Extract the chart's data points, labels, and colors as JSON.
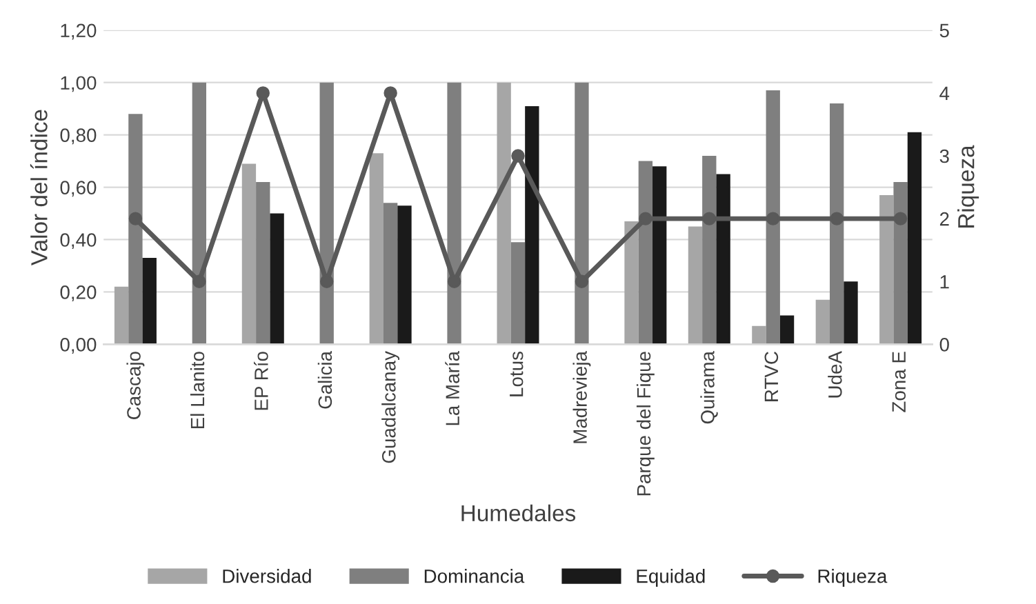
{
  "chart_data": {
    "type": "bar",
    "xlabel": "Humedales",
    "ylabel": "Valor del índice",
    "y2label": "Riqueza",
    "categories": [
      "Cascajo",
      "El Llanito",
      "EP Río",
      "Galicia",
      "Guadalcanay",
      "La María",
      "Lotus",
      "Madrevieja",
      "Parque del Fique",
      "Quirama",
      "RTVC",
      "UdeA",
      "Zona E"
    ],
    "series": [
      {
        "name": "Diversidad",
        "color": "#a6a6a6",
        "values": [
          0.22,
          null,
          0.69,
          null,
          0.73,
          null,
          1.0,
          null,
          0.47,
          0.45,
          0.07,
          0.17,
          0.57
        ]
      },
      {
        "name": "Dominancia",
        "color": "#7f7f7f",
        "values": [
          0.88,
          1.0,
          0.62,
          1.0,
          0.54,
          1.0,
          0.39,
          1.0,
          0.7,
          0.72,
          0.97,
          0.92,
          0.62
        ]
      },
      {
        "name": "Equidad",
        "color": "#1a1a1a",
        "values": [
          0.33,
          null,
          0.5,
          null,
          0.53,
          null,
          0.91,
          null,
          0.68,
          0.65,
          0.11,
          0.24,
          0.81
        ]
      },
      {
        "name": "Riqueza",
        "type": "line",
        "axis": "y2",
        "color": "#595959",
        "marker": "circle",
        "values": [
          2,
          1,
          4,
          1,
          4,
          1,
          3,
          1,
          2,
          2,
          2,
          2,
          2
        ]
      }
    ],
    "ylim": [
      0,
      1.2
    ],
    "yticks": [
      {
        "value": 0,
        "label": "0,00"
      },
      {
        "value": 0.2,
        "label": "0,20"
      },
      {
        "value": 0.4,
        "label": "0,40"
      },
      {
        "value": 0.6,
        "label": "0,60"
      },
      {
        "value": 0.8,
        "label": "0,80"
      },
      {
        "value": 1.0,
        "label": "1,00"
      },
      {
        "value": 1.2,
        "label": "1,20"
      }
    ],
    "y2lim": [
      0,
      5
    ],
    "y2ticks": [
      0,
      1,
      2,
      3,
      4,
      5
    ],
    "grid": "y",
    "legend": "bottom"
  }
}
